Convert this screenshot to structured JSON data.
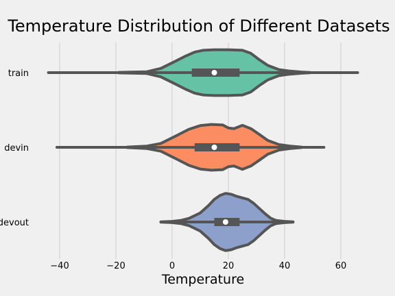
{
  "chart_data": {
    "type": "violin",
    "title": "Temperature Distribution of Different Datasets",
    "xlabel": "Temperature",
    "ylabel": "",
    "xlim": [
      -50,
      70
    ],
    "xticks": [
      -40,
      -20,
      0,
      20,
      40,
      60
    ],
    "xtick_labels": [
      "−40",
      "−20",
      "0",
      "20",
      "40",
      "60"
    ],
    "grid": "vertical",
    "orientation": "horizontal",
    "categories": [
      "train",
      "devin",
      "devout"
    ],
    "series": [
      {
        "category": "train",
        "color": "#66c2a5",
        "whisker_range": [
          -44,
          66
        ],
        "q1": 7,
        "median": 15,
        "q3": 24,
        "profile": [
          [
            -19,
            0.01
          ],
          [
            -9,
            0.03
          ],
          [
            -4,
            0.14
          ],
          [
            1,
            0.37
          ],
          [
            5,
            0.56
          ],
          [
            8,
            0.68
          ],
          [
            11,
            0.74
          ],
          [
            15,
            0.76
          ],
          [
            20,
            0.76
          ],
          [
            25,
            0.74
          ],
          [
            28,
            0.64
          ],
          [
            31,
            0.43
          ],
          [
            34,
            0.24
          ],
          [
            38,
            0.1
          ],
          [
            42,
            0.05
          ],
          [
            46,
            0.02
          ],
          [
            49,
            0.005
          ]
        ]
      },
      {
        "category": "devin",
        "color": "#fc8d62",
        "whisker_range": [
          -41,
          54
        ],
        "q1": 8,
        "median": 15,
        "q3": 24,
        "profile": [
          [
            -16,
            0.01
          ],
          [
            -9,
            0.04
          ],
          [
            -4,
            0.13
          ],
          [
            2,
            0.41
          ],
          [
            6,
            0.6
          ],
          [
            10,
            0.72
          ],
          [
            14,
            0.76
          ],
          [
            18,
            0.74
          ],
          [
            20,
            0.64
          ],
          [
            22,
            0.62
          ],
          [
            25,
            0.73
          ],
          [
            28,
            0.62
          ],
          [
            31,
            0.43
          ],
          [
            34,
            0.23
          ],
          [
            38,
            0.09
          ],
          [
            42,
            0.04
          ],
          [
            46,
            0.01
          ]
        ]
      },
      {
        "category": "devout",
        "color": "#8da0cb",
        "whisker_range": [
          -4,
          43
        ],
        "q1": 15,
        "median": 19,
        "q3": 24,
        "profile": [
          [
            -4,
            0.005
          ],
          [
            0,
            0.02
          ],
          [
            3,
            0.05
          ],
          [
            6,
            0.12
          ],
          [
            10,
            0.3
          ],
          [
            13,
            0.55
          ],
          [
            15,
            0.75
          ],
          [
            17,
            0.88
          ],
          [
            19,
            0.95
          ],
          [
            21,
            0.92
          ],
          [
            23,
            0.85
          ],
          [
            25,
            0.8
          ],
          [
            27,
            0.75
          ],
          [
            29,
            0.62
          ],
          [
            31,
            0.45
          ],
          [
            33,
            0.28
          ],
          [
            35,
            0.13
          ],
          [
            37,
            0.05
          ],
          [
            40,
            0.02
          ],
          [
            43,
            0.005
          ]
        ]
      }
    ]
  }
}
